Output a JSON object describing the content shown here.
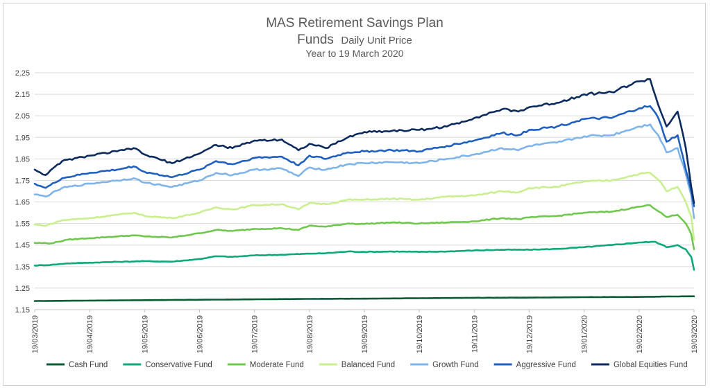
{
  "chart_data": {
    "type": "line",
    "title_line1": "MAS Retirement Savings Plan",
    "title_line2_big": "Funds",
    "title_line2_small": "Daily Unit Price",
    "subtitle": "Year to 19 March 2020",
    "xlabel": "",
    "ylabel": "",
    "ylim": [
      1.15,
      2.25
    ],
    "yticks": [
      "1.15",
      "1.25",
      "1.35",
      "1.45",
      "1.55",
      "1.65",
      "1.75",
      "1.85",
      "1.95",
      "2.05",
      "2.15",
      "2.25"
    ],
    "xticks": [
      "19/03/2019",
      "19/04/2019",
      "19/05/2019",
      "19/06/2019",
      "19/07/2019",
      "19/08/2019",
      "19/09/2019",
      "19/10/2019",
      "19/11/2019",
      "19/12/2019",
      "19/01/2020",
      "19/02/2020",
      "19/03/2020"
    ],
    "x_month_index": [
      0,
      1,
      2,
      3,
      4,
      5,
      6,
      7,
      8,
      9,
      10,
      11,
      12
    ],
    "legend_position": "bottom",
    "series": [
      {
        "name": "Cash Fund",
        "color": "#0b5b35",
        "points": [
          [
            0,
            1.19
          ],
          [
            1,
            1.192
          ],
          [
            2,
            1.194
          ],
          [
            3,
            1.196
          ],
          [
            4,
            1.198
          ],
          [
            5,
            1.2
          ],
          [
            6,
            1.201
          ],
          [
            7,
            1.203
          ],
          [
            8,
            1.205
          ],
          [
            9,
            1.206
          ],
          [
            10,
            1.208
          ],
          [
            11,
            1.209
          ],
          [
            11.5,
            1.211
          ],
          [
            12,
            1.212
          ]
        ]
      },
      {
        "name": "Conservative Fund",
        "color": "#0fa878",
        "points": [
          [
            0,
            1.355
          ],
          [
            0.3,
            1.358
          ],
          [
            0.6,
            1.365
          ],
          [
            1,
            1.368
          ],
          [
            1.5,
            1.372
          ],
          [
            2,
            1.375
          ],
          [
            2.5,
            1.373
          ],
          [
            3,
            1.385
          ],
          [
            3.3,
            1.398
          ],
          [
            3.6,
            1.395
          ],
          [
            4,
            1.402
          ],
          [
            4.5,
            1.405
          ],
          [
            5,
            1.41
          ],
          [
            5.3,
            1.412
          ],
          [
            5.7,
            1.42
          ],
          [
            6,
            1.418
          ],
          [
            6.5,
            1.42
          ],
          [
            7,
            1.418
          ],
          [
            7.5,
            1.42
          ],
          [
            8,
            1.425
          ],
          [
            8.5,
            1.428
          ],
          [
            9,
            1.428
          ],
          [
            9.5,
            1.432
          ],
          [
            10,
            1.44
          ],
          [
            10.5,
            1.45
          ],
          [
            11,
            1.462
          ],
          [
            11.3,
            1.465
          ],
          [
            11.5,
            1.44
          ],
          [
            11.7,
            1.45
          ],
          [
            11.85,
            1.43
          ],
          [
            11.95,
            1.395
          ],
          [
            12,
            1.335
          ]
        ]
      },
      {
        "name": "Moderate Fund",
        "color": "#6fc84d",
        "points": [
          [
            0,
            1.46
          ],
          [
            0.3,
            1.458
          ],
          [
            0.6,
            1.475
          ],
          [
            1,
            1.482
          ],
          [
            1.5,
            1.49
          ],
          [
            1.8,
            1.495
          ],
          [
            2,
            1.49
          ],
          [
            2.5,
            1.485
          ],
          [
            3,
            1.505
          ],
          [
            3.3,
            1.52
          ],
          [
            3.6,
            1.515
          ],
          [
            4,
            1.525
          ],
          [
            4.5,
            1.528
          ],
          [
            4.8,
            1.52
          ],
          [
            5,
            1.54
          ],
          [
            5.3,
            1.535
          ],
          [
            5.7,
            1.55
          ],
          [
            6,
            1.548
          ],
          [
            6.5,
            1.555
          ],
          [
            7,
            1.55
          ],
          [
            7.5,
            1.555
          ],
          [
            8,
            1.56
          ],
          [
            8.5,
            1.575
          ],
          [
            8.8,
            1.57
          ],
          [
            9,
            1.578
          ],
          [
            9.5,
            1.585
          ],
          [
            10,
            1.6
          ],
          [
            10.5,
            1.605
          ],
          [
            11,
            1.628
          ],
          [
            11.2,
            1.635
          ],
          [
            11.4,
            1.6
          ],
          [
            11.5,
            1.58
          ],
          [
            11.7,
            1.59
          ],
          [
            11.85,
            1.55
          ],
          [
            11.95,
            1.5
          ],
          [
            12,
            1.43
          ]
        ]
      },
      {
        "name": "Balanced Fund",
        "color": "#c9ef8f",
        "points": [
          [
            0,
            1.545
          ],
          [
            0.2,
            1.54
          ],
          [
            0.5,
            1.565
          ],
          [
            1,
            1.575
          ],
          [
            1.5,
            1.59
          ],
          [
            1.8,
            1.6
          ],
          [
            2,
            1.585
          ],
          [
            2.5,
            1.575
          ],
          [
            3,
            1.6
          ],
          [
            3.3,
            1.625
          ],
          [
            3.6,
            1.615
          ],
          [
            4,
            1.635
          ],
          [
            4.5,
            1.64
          ],
          [
            4.8,
            1.615
          ],
          [
            5,
            1.645
          ],
          [
            5.3,
            1.64
          ],
          [
            5.7,
            1.66
          ],
          [
            6,
            1.66
          ],
          [
            6.5,
            1.665
          ],
          [
            7,
            1.66
          ],
          [
            7.5,
            1.675
          ],
          [
            8,
            1.68
          ],
          [
            8.5,
            1.7
          ],
          [
            8.8,
            1.695
          ],
          [
            9,
            1.715
          ],
          [
            9.5,
            1.72
          ],
          [
            10,
            1.745
          ],
          [
            10.5,
            1.75
          ],
          [
            11,
            1.78
          ],
          [
            11.2,
            1.785
          ],
          [
            11.4,
            1.74
          ],
          [
            11.5,
            1.7
          ],
          [
            11.7,
            1.72
          ],
          [
            11.85,
            1.65
          ],
          [
            11.95,
            1.58
          ],
          [
            12,
            1.475
          ]
        ]
      },
      {
        "name": "Growth Fund",
        "color": "#7fb4ea",
        "points": [
          [
            0,
            1.685
          ],
          [
            0.2,
            1.675
          ],
          [
            0.5,
            1.715
          ],
          [
            1,
            1.735
          ],
          [
            1.5,
            1.75
          ],
          [
            1.8,
            1.76
          ],
          [
            2,
            1.74
          ],
          [
            2.5,
            1.72
          ],
          [
            3,
            1.75
          ],
          [
            3.3,
            1.785
          ],
          [
            3.6,
            1.775
          ],
          [
            4,
            1.8
          ],
          [
            4.5,
            1.805
          ],
          [
            4.8,
            1.77
          ],
          [
            5,
            1.81
          ],
          [
            5.3,
            1.8
          ],
          [
            5.7,
            1.825
          ],
          [
            6,
            1.83
          ],
          [
            6.5,
            1.835
          ],
          [
            7,
            1.83
          ],
          [
            7.5,
            1.85
          ],
          [
            8,
            1.87
          ],
          [
            8.5,
            1.9
          ],
          [
            8.8,
            1.89
          ],
          [
            9,
            1.91
          ],
          [
            9.5,
            1.925
          ],
          [
            10,
            1.955
          ],
          [
            10.5,
            1.96
          ],
          [
            11,
            2.0
          ],
          [
            11.2,
            2.01
          ],
          [
            11.35,
            1.96
          ],
          [
            11.5,
            1.88
          ],
          [
            11.7,
            1.9
          ],
          [
            11.85,
            1.78
          ],
          [
            11.95,
            1.68
          ],
          [
            12,
            1.575
          ]
        ]
      },
      {
        "name": "Aggressive Fund",
        "color": "#1f5fbf",
        "points": [
          [
            0,
            1.735
          ],
          [
            0.2,
            1.715
          ],
          [
            0.5,
            1.76
          ],
          [
            1,
            1.785
          ],
          [
            1.5,
            1.8
          ],
          [
            1.8,
            1.815
          ],
          [
            2,
            1.79
          ],
          [
            2.5,
            1.765
          ],
          [
            3,
            1.8
          ],
          [
            3.3,
            1.84
          ],
          [
            3.6,
            1.825
          ],
          [
            4,
            1.855
          ],
          [
            4.5,
            1.86
          ],
          [
            4.8,
            1.82
          ],
          [
            5,
            1.865
          ],
          [
            5.3,
            1.85
          ],
          [
            5.7,
            1.88
          ],
          [
            6,
            1.885
          ],
          [
            6.5,
            1.89
          ],
          [
            7,
            1.885
          ],
          [
            7.5,
            1.91
          ],
          [
            8,
            1.935
          ],
          [
            8.5,
            1.97
          ],
          [
            8.8,
            1.96
          ],
          [
            9,
            1.985
          ],
          [
            9.5,
            2.0
          ],
          [
            10,
            2.035
          ],
          [
            10.5,
            2.04
          ],
          [
            11,
            2.085
          ],
          [
            11.2,
            2.095
          ],
          [
            11.35,
            2.04
          ],
          [
            11.5,
            1.93
          ],
          [
            11.7,
            1.96
          ],
          [
            11.85,
            1.8
          ],
          [
            11.95,
            1.7
          ],
          [
            12,
            1.63
          ]
        ]
      },
      {
        "name": "Global Equities Fund",
        "color": "#0d2a5e",
        "points": [
          [
            0,
            1.8
          ],
          [
            0.2,
            1.775
          ],
          [
            0.5,
            1.84
          ],
          [
            1,
            1.865
          ],
          [
            1.5,
            1.885
          ],
          [
            1.8,
            1.9
          ],
          [
            2,
            1.87
          ],
          [
            2.5,
            1.83
          ],
          [
            3,
            1.875
          ],
          [
            3.3,
            1.915
          ],
          [
            3.6,
            1.9
          ],
          [
            4,
            1.935
          ],
          [
            4.5,
            1.94
          ],
          [
            4.8,
            1.89
          ],
          [
            5,
            1.92
          ],
          [
            5.3,
            1.9
          ],
          [
            5.7,
            1.95
          ],
          [
            6,
            1.975
          ],
          [
            6.5,
            1.98
          ],
          [
            7,
            1.985
          ],
          [
            7.5,
            2.0
          ],
          [
            8,
            2.04
          ],
          [
            8.5,
            2.08
          ],
          [
            8.8,
            2.07
          ],
          [
            9,
            2.09
          ],
          [
            9.5,
            2.11
          ],
          [
            10,
            2.15
          ],
          [
            10.5,
            2.16
          ],
          [
            11,
            2.21
          ],
          [
            11.2,
            2.22
          ],
          [
            11.35,
            2.1
          ],
          [
            11.5,
            2.0
          ],
          [
            11.7,
            2.07
          ],
          [
            11.85,
            1.9
          ],
          [
            11.95,
            1.72
          ],
          [
            12,
            1.645
          ]
        ]
      }
    ]
  }
}
